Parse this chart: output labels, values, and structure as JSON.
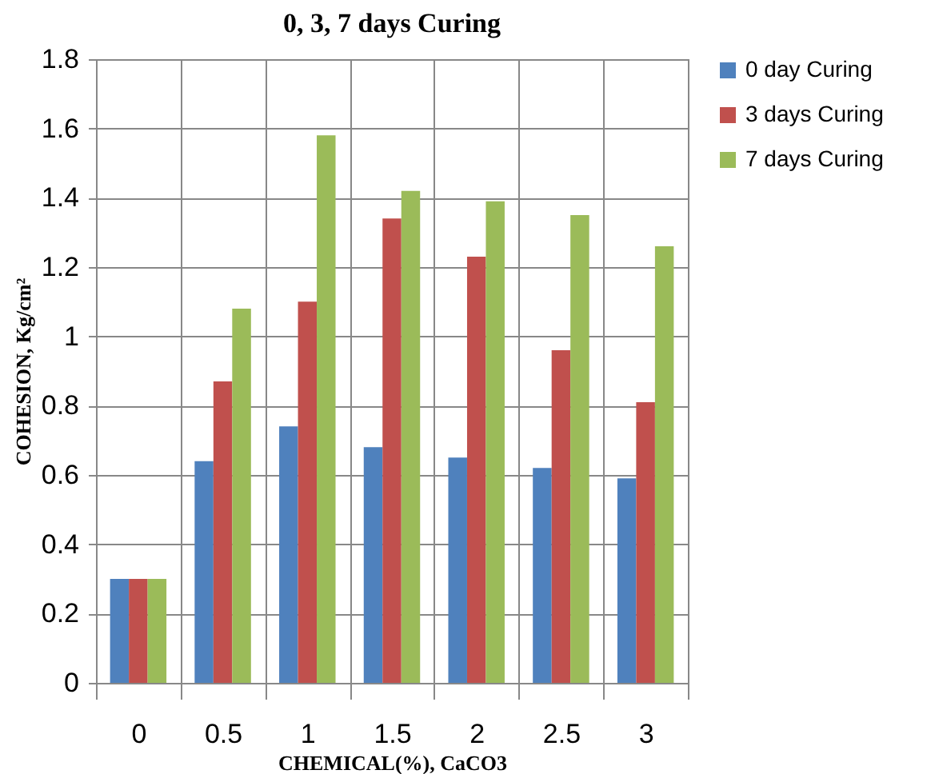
{
  "chart_data": {
    "type": "bar",
    "title": "0, 3, 7 days Curing",
    "xlabel": "CHEMICAL(%), CaCO3",
    "ylabel": "COHESION, Kg/cm²",
    "categories": [
      "0",
      "0.5",
      "1",
      "1.5",
      "2",
      "2.5",
      "3"
    ],
    "series": [
      {
        "name": "0 day Curing",
        "color": "#4f81bd",
        "values": [
          0.3,
          0.64,
          0.74,
          0.68,
          0.65,
          0.62,
          0.59
        ]
      },
      {
        "name": "3 days Curing",
        "color": "#c0504d",
        "values": [
          0.3,
          0.87,
          1.1,
          1.34,
          1.23,
          0.96,
          0.81
        ]
      },
      {
        "name": "7 days Curing",
        "color": "#9bbb59",
        "values": [
          0.3,
          1.08,
          1.58,
          1.42,
          1.39,
          1.35,
          1.26
        ]
      }
    ],
    "ylim": [
      0,
      1.8
    ],
    "yticks": [
      0,
      0.2,
      0.4,
      0.6,
      0.8,
      1,
      1.2,
      1.4,
      1.6,
      1.8
    ],
    "grid": true,
    "legend": "right"
  }
}
